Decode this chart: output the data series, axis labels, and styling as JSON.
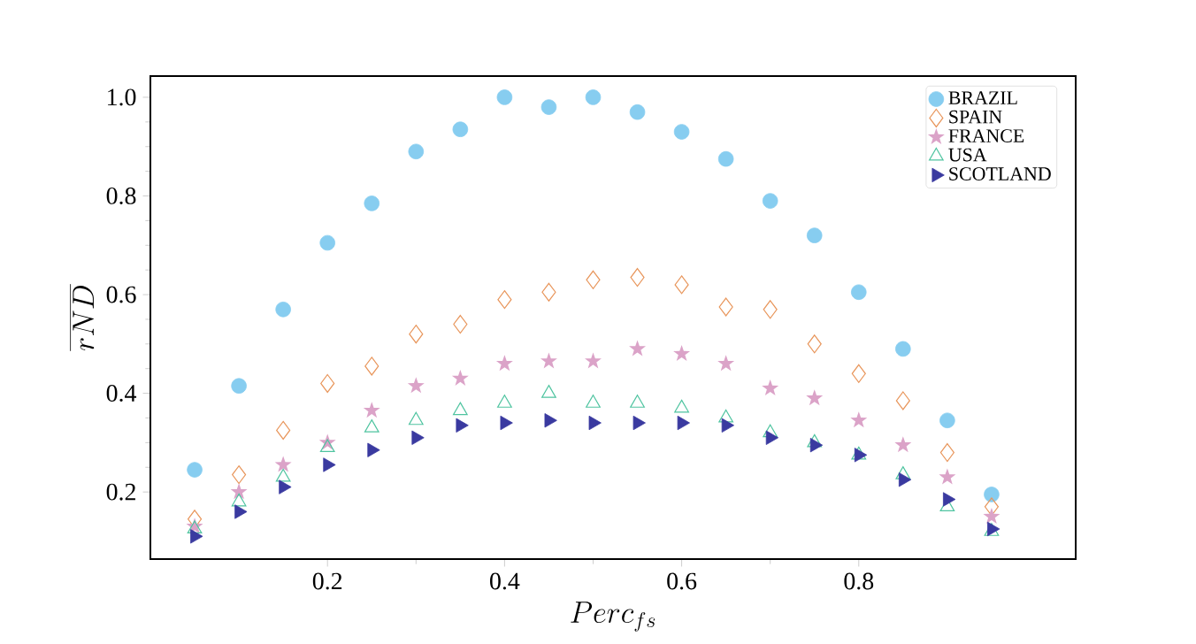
{
  "chart_data": {
    "type": "scatter",
    "xlabel": "Perc_{fs}",
    "ylabel": "\\overline{rND}",
    "x": [
      0.05,
      0.1,
      0.15,
      0.2,
      0.25,
      0.3,
      0.35,
      0.4,
      0.45,
      0.5,
      0.55,
      0.6,
      0.65,
      0.7,
      0.75,
      0.8,
      0.85,
      0.9,
      0.95
    ],
    "series": [
      {
        "name": "BRAZIL",
        "color": "#87cdf0",
        "marker": "circle",
        "values": [
          0.245,
          0.415,
          0.57,
          0.705,
          0.785,
          0.89,
          0.935,
          1.0,
          0.98,
          1.0,
          0.97,
          0.93,
          0.875,
          0.79,
          0.72,
          0.605,
          0.49,
          0.345,
          0.195
        ]
      },
      {
        "name": "SPAIN",
        "color": "#e8955a",
        "marker": "diamond",
        "values": [
          0.145,
          0.235,
          0.325,
          0.42,
          0.455,
          0.52,
          0.54,
          0.59,
          0.605,
          0.63,
          0.635,
          0.62,
          0.575,
          0.57,
          0.5,
          0.44,
          0.385,
          0.28,
          0.17
        ]
      },
      {
        "name": "FRANCE",
        "color": "#dba3c8",
        "marker": "star",
        "values": [
          0.13,
          0.2,
          0.255,
          0.3,
          0.365,
          0.415,
          0.43,
          0.46,
          0.465,
          0.465,
          0.49,
          0.48,
          0.46,
          0.41,
          0.39,
          0.345,
          0.295,
          0.23,
          0.15
        ]
      },
      {
        "name": "USA",
        "color": "#4fc4a0",
        "marker": "triangle",
        "values": [
          0.125,
          0.18,
          0.23,
          0.29,
          0.33,
          0.345,
          0.365,
          0.38,
          0.4,
          0.38,
          0.38,
          0.37,
          0.35,
          0.32,
          0.3,
          0.275,
          0.235,
          0.17,
          0.12
        ]
      },
      {
        "name": "SCOTLAND",
        "color": "#3a3aa0",
        "marker": "triangle-right",
        "values": [
          0.11,
          0.16,
          0.21,
          0.255,
          0.285,
          0.31,
          0.335,
          0.34,
          0.345,
          0.34,
          0.34,
          0.34,
          0.335,
          0.31,
          0.295,
          0.275,
          0.225,
          0.185,
          0.125
        ]
      }
    ],
    "xlim": [
      0.0,
      1.045
    ],
    "ylim": [
      0.064,
      1.043
    ],
    "xticks": [
      0.2,
      0.4,
      0.6,
      0.8
    ],
    "yticks": [
      0.2,
      0.4,
      0.6,
      0.8,
      {
        "value": 1.0,
        "label": "1.0"
      }
    ],
    "legend": "top right"
  }
}
